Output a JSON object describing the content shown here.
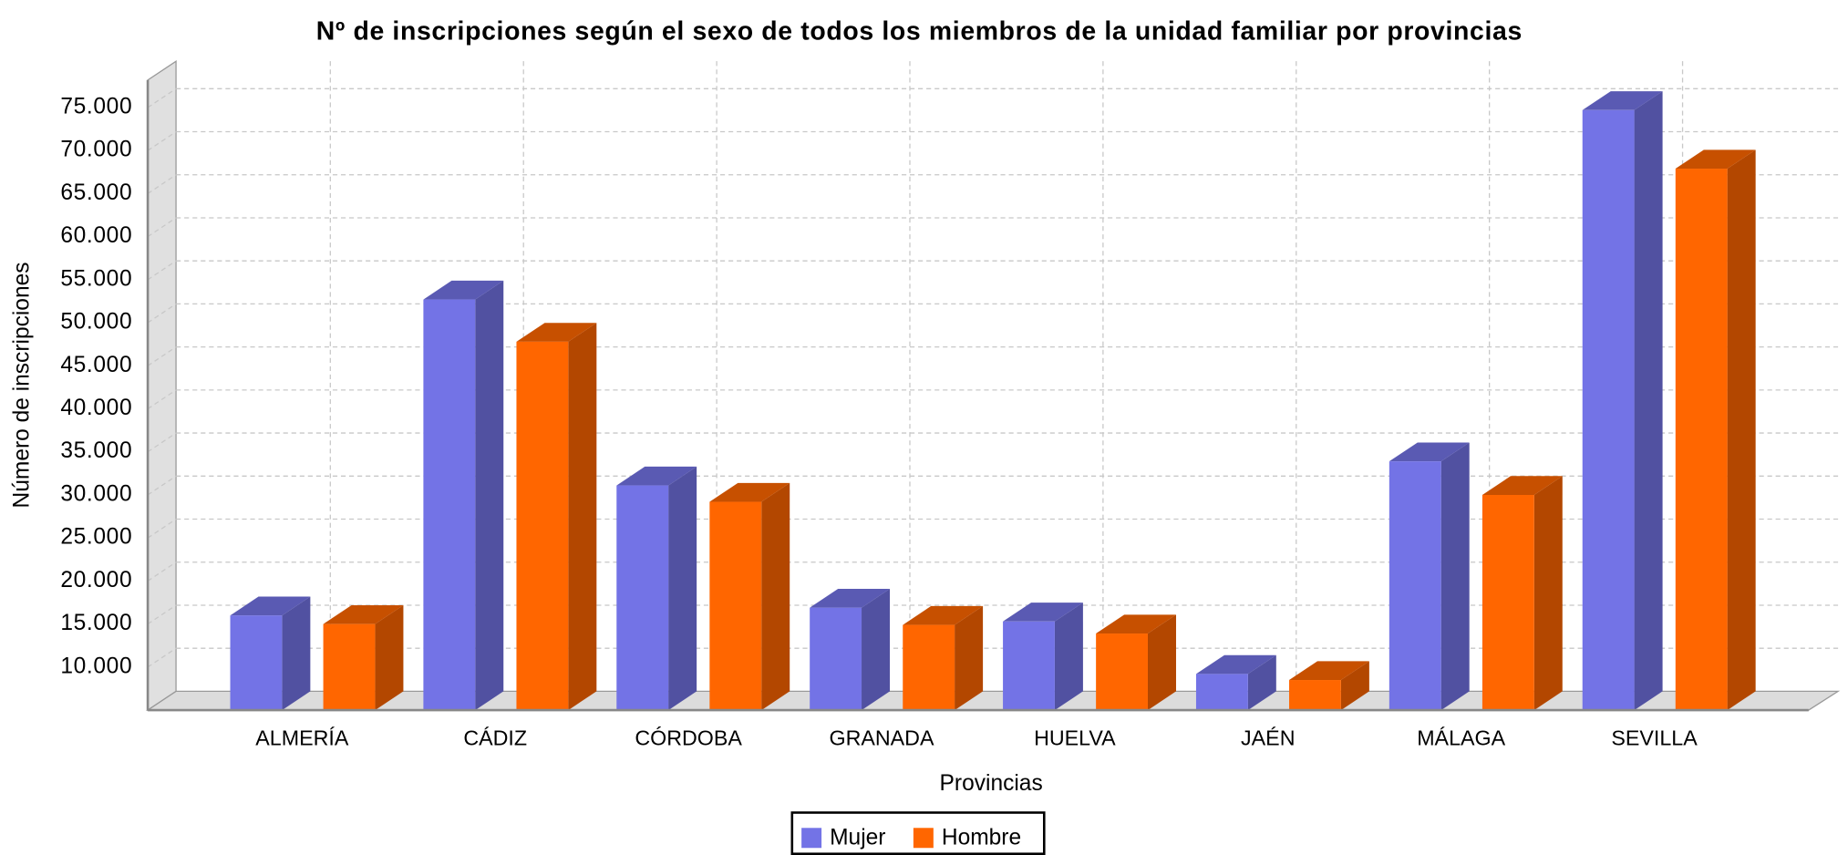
{
  "chart_data": {
    "type": "bar3d",
    "title": "Nº de inscripciones según el sexo de todos los miembros de la unidad familiar por provincias",
    "x_label": "Provincias",
    "y_label": "Número de inscripciones",
    "categories": [
      "ALMERÍA",
      "CÁDIZ",
      "CÓRDOBA",
      "GRANADA",
      "HUELVA",
      "JAÉN",
      "MÁLAGA",
      "SEVILLA"
    ],
    "series": [
      {
        "name": "Mujer",
        "color": "#7373e6",
        "values": [
          16000,
          52700,
          31100,
          16900,
          15300,
          9200,
          33900,
          74700
        ]
      },
      {
        "name": "Hombre",
        "color": "#ff6600",
        "values": [
          15000,
          47800,
          29200,
          14900,
          13900,
          8500,
          30000,
          67900
        ]
      }
    ],
    "ylim": [
      5000,
      76000
    ],
    "yticks": [
      {
        "value": 10000,
        "label": "10.000"
      },
      {
        "value": 15000,
        "label": "15.000"
      },
      {
        "value": 20000,
        "label": "20.000"
      },
      {
        "value": 25000,
        "label": "25.000"
      },
      {
        "value": 30000,
        "label": "30.000"
      },
      {
        "value": 35000,
        "label": "35.000"
      },
      {
        "value": 40000,
        "label": "40.000"
      },
      {
        "value": 45000,
        "label": "45.000"
      },
      {
        "value": 50000,
        "label": "50.000"
      },
      {
        "value": 55000,
        "label": "55.000"
      },
      {
        "value": 60000,
        "label": "60.000"
      },
      {
        "value": 65000,
        "label": "65.000"
      },
      {
        "value": 70000,
        "label": "70.000"
      },
      {
        "value": 75000,
        "label": "75.000"
      }
    ],
    "grid": true,
    "legend": "bottom"
  }
}
